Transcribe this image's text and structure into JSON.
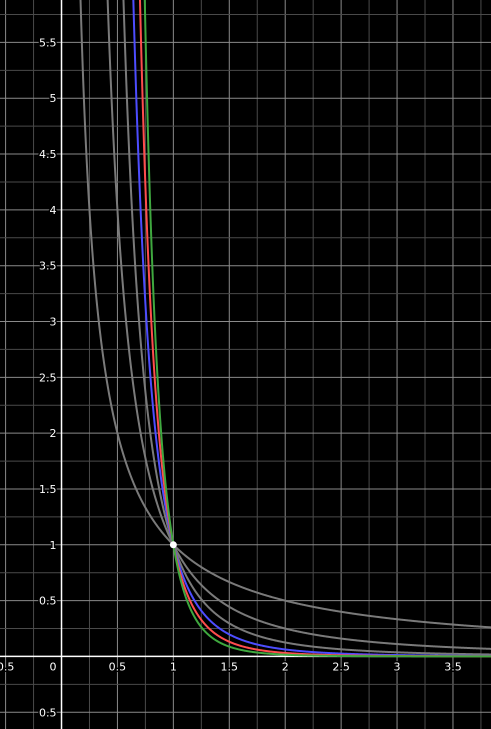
{
  "chart_data": {
    "type": "line",
    "title": "",
    "xlabel": "",
    "ylabel": "",
    "xlim": [
      -0.55,
      3.84
    ],
    "ylim": [
      -0.65,
      5.88
    ],
    "grid": true,
    "x_ticks": [
      {
        "value": -0.5,
        "label": "0.5"
      },
      {
        "value": 0.5,
        "label": "0.5"
      },
      {
        "value": 1,
        "label": "1"
      },
      {
        "value": 1.5,
        "label": "1.5"
      },
      {
        "value": 2,
        "label": "2"
      },
      {
        "value": 2.5,
        "label": "2.5"
      },
      {
        "value": 3,
        "label": "3"
      },
      {
        "value": 3.5,
        "label": "3.5"
      }
    ],
    "y_ticks": [
      {
        "value": -0.5,
        "label": "0.5"
      },
      {
        "value": 0.5,
        "label": "0.5"
      },
      {
        "value": 1,
        "label": "1"
      },
      {
        "value": 1.5,
        "label": "1.5"
      },
      {
        "value": 2,
        "label": "2"
      },
      {
        "value": 2.5,
        "label": "2.5"
      },
      {
        "value": 3,
        "label": "3"
      },
      {
        "value": 3.5,
        "label": "3.5"
      },
      {
        "value": 4,
        "label": "4"
      },
      {
        "value": 4.5,
        "label": "4.5"
      },
      {
        "value": 5,
        "label": "5"
      },
      {
        "value": 5.5,
        "label": "5.5"
      }
    ],
    "origin_label": "0",
    "series": [
      {
        "function": "y = x^-1",
        "exponent": -1,
        "color": "#7a7a7a"
      },
      {
        "function": "y = x^-2",
        "exponent": -2,
        "color": "#7a7a7a"
      },
      {
        "function": "y = x^-3",
        "exponent": -3,
        "color": "#7a7a7a"
      },
      {
        "function": "y = x^-4",
        "exponent": -4,
        "color": "#4d4dff"
      },
      {
        "function": "y = x^-5",
        "exponent": -5,
        "color": "#ff4d4d"
      },
      {
        "function": "y = x^-6",
        "exponent": -6,
        "color": "#3fa83f"
      },
      {
        "function": "y = x^-6 (left branch)",
        "exponent": -6,
        "branch": "negative",
        "color": "#7a7a7a"
      }
    ],
    "points": [
      {
        "x": 1,
        "y": 1,
        "color": "#ffffff"
      }
    ]
  }
}
